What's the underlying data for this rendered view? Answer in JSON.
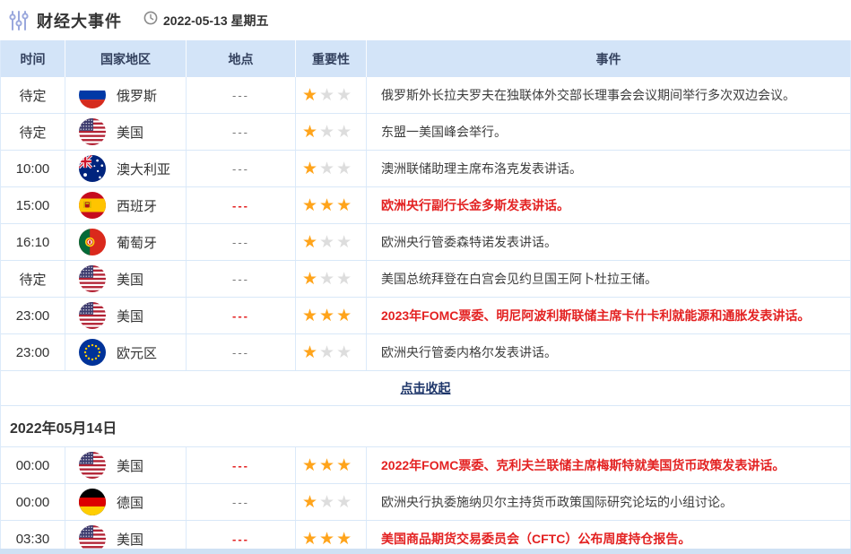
{
  "colors": {
    "header_bg": "#d3e4f8",
    "row_border": "#d9e8f8",
    "col_border": "#dceafa",
    "text_dark": "#333333",
    "text_gray": "#777777",
    "red": "#e32222",
    "star_gold": "#ffa41b",
    "star_gray": "#dddddd",
    "link_navy": "#1d3569",
    "icon_blue": "#9aa8dd",
    "header_text": "#33415e"
  },
  "topbar": {
    "title": "财经大事件",
    "title_icon": "sliders-icon",
    "clock_icon": "clock-icon",
    "date_label": "2022-05-13 星期五"
  },
  "table": {
    "headers": [
      "时间",
      "国家地区",
      "地点",
      "重要性",
      "事件"
    ],
    "max_stars": 3
  },
  "day1": {
    "collapse_label": "点击收起",
    "rows": [
      {
        "time": "待定",
        "flag": "russia",
        "country": "俄罗斯",
        "location": "---",
        "stars": 1,
        "event": "俄罗斯外长拉夫罗夫在独联体外交部长理事会会议期间举行多次双边会议。",
        "highlight": false
      },
      {
        "time": "待定",
        "flag": "usa",
        "country": "美国",
        "location": "---",
        "stars": 1,
        "event": "东盟一美国峰会举行。",
        "highlight": false
      },
      {
        "time": "10:00",
        "flag": "australia",
        "country": "澳大利亚",
        "location": "---",
        "stars": 1,
        "event": "澳洲联储助理主席布洛克发表讲话。",
        "highlight": false
      },
      {
        "time": "15:00",
        "flag": "spain",
        "country": "西班牙",
        "location": "---",
        "stars": 3,
        "event": "欧洲央行副行长金多斯发表讲话。",
        "highlight": true
      },
      {
        "time": "16:10",
        "flag": "portugal",
        "country": "葡萄牙",
        "location": "---",
        "stars": 1,
        "event": "欧洲央行管委森特诺发表讲话。",
        "highlight": false
      },
      {
        "time": "待定",
        "flag": "usa",
        "country": "美国",
        "location": "---",
        "stars": 1,
        "event": "美国总统拜登在白宫会见约旦国王阿卜杜拉王储。",
        "highlight": false
      },
      {
        "time": "23:00",
        "flag": "usa",
        "country": "美国",
        "location": "---",
        "stars": 3,
        "event": "2023年FOMC票委、明尼阿波利斯联储主席卡什卡利就能源和通胀发表讲话。",
        "highlight": true
      },
      {
        "time": "23:00",
        "flag": "eu",
        "country": "欧元区",
        "location": "---",
        "stars": 1,
        "event": "欧洲央行管委内格尔发表讲话。",
        "highlight": false
      }
    ]
  },
  "day2": {
    "date_label": "2022年05月14日",
    "rows": [
      {
        "time": "00:00",
        "flag": "usa",
        "country": "美国",
        "location": "---",
        "stars": 3,
        "event": "2022年FOMC票委、克利夫兰联储主席梅斯特就美国货币政策发表讲话。",
        "highlight": true
      },
      {
        "time": "00:00",
        "flag": "germany",
        "country": "德国",
        "location": "---",
        "stars": 1,
        "event": "欧洲央行执委施纳贝尔主持货币政策国际研究论坛的小组讨论。",
        "highlight": false
      },
      {
        "time": "03:30",
        "flag": "usa",
        "country": "美国",
        "location": "---",
        "stars": 3,
        "event": "美国商品期货交易委员会（CFTC）公布周度持仓报告。",
        "highlight": true
      }
    ]
  }
}
